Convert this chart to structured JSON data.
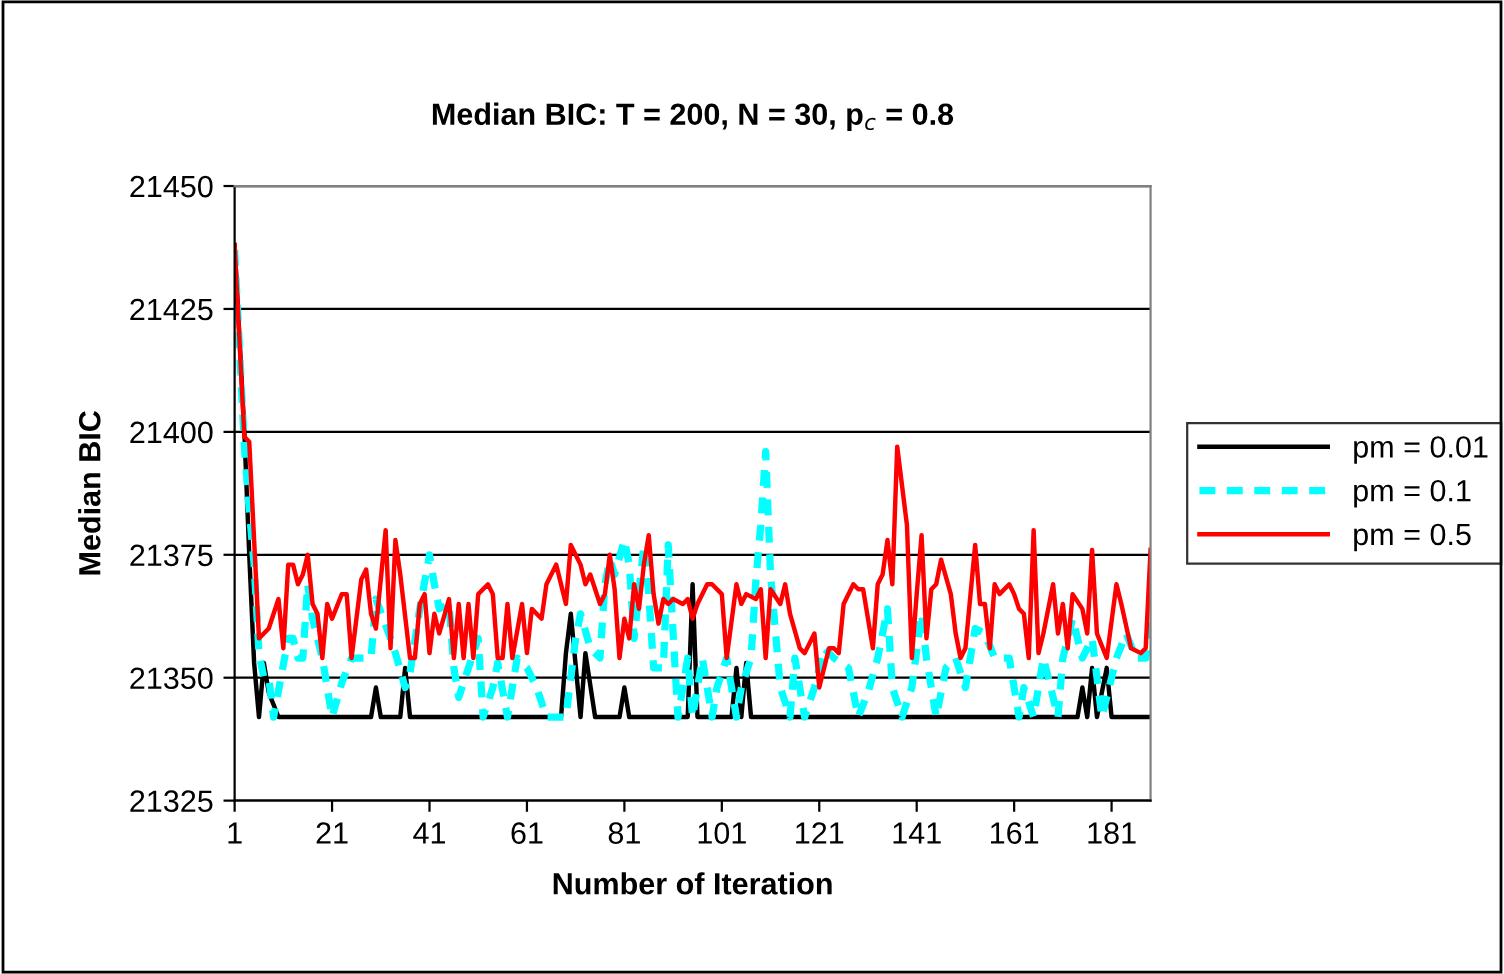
{
  "chart_data": {
    "type": "line",
    "title": "Median BIC: T = 200, N = 30, p$_{c}$ = 0.8",
    "xlabel": "Number of Iteration",
    "ylabel": "Median BIC",
    "xlim": [
      1,
      189
    ],
    "xticks": [
      1,
      21,
      41,
      61,
      81,
      101,
      121,
      141,
      161,
      181
    ],
    "ylim": [
      21325,
      21450
    ],
    "yticks": [
      21325,
      21350,
      21375,
      21400,
      21425,
      21450
    ],
    "grid": "y",
    "legend": "right",
    "marker": "none",
    "series": [
      {
        "name": "pm = 0.01",
        "color": "#000000",
        "line_style": "solid",
        "x": [
          1,
          3,
          4,
          5,
          6,
          7,
          8,
          10,
          29,
          30,
          31,
          35,
          36,
          37,
          68,
          69,
          70,
          72,
          73,
          75,
          80,
          81,
          82,
          94,
          95,
          96,
          103,
          104,
          105,
          106,
          107,
          174,
          175,
          176,
          177,
          178,
          180,
          181,
          189
        ],
        "values": [
          21438,
          21400,
          21375,
          21353,
          21342,
          21353,
          21347,
          21342,
          21342,
          21348,
          21342,
          21342,
          21352,
          21342,
          21342,
          21355,
          21363,
          21342,
          21355,
          21342,
          21342,
          21348,
          21342,
          21342,
          21369,
          21342,
          21342,
          21352,
          21342,
          21353,
          21342,
          21342,
          21348,
          21342,
          21352,
          21342,
          21352,
          21342,
          21342
        ]
      },
      {
        "name": "pm = 0.1",
        "color": "#00ffff",
        "line_style": "dashed",
        "x": [
          1,
          3,
          4,
          5,
          6,
          7,
          8,
          9,
          12,
          13,
          14,
          15,
          16,
          17,
          19,
          20,
          21,
          23,
          25,
          27,
          29,
          30,
          33,
          34,
          36,
          37,
          39,
          41,
          42,
          43,
          45,
          46,
          47,
          49,
          51,
          52,
          54,
          55,
          57,
          59,
          61,
          63,
          65,
          69,
          71,
          72,
          74,
          76,
          77,
          78,
          79,
          81,
          82,
          83,
          85,
          86,
          87,
          89,
          90,
          91,
          92,
          94,
          95,
          97,
          99,
          100,
          102,
          104,
          105,
          107,
          108,
          109,
          110,
          111,
          113,
          115,
          116,
          118,
          120,
          122,
          124,
          127,
          129,
          131,
          133,
          135,
          136,
          138,
          140,
          142,
          143,
          145,
          147,
          149,
          151,
          153,
          155,
          157,
          160,
          162,
          163,
          165,
          167,
          170,
          171,
          173,
          175,
          177,
          179,
          182,
          184,
          186,
          188,
          189
        ],
        "values": [
          21437,
          21397,
          21384,
          21373,
          21355,
          21350,
          21350,
          21342,
          21358,
          21358,
          21354,
          21354,
          21369,
          21362,
          21354,
          21348,
          21342,
          21349,
          21354,
          21354,
          21354,
          21366,
          21358,
          21355,
          21348,
          21351,
          21364,
          21375,
          21369,
          21364,
          21365,
          21352,
          21346,
          21352,
          21358,
          21342,
          21348,
          21353,
          21342,
          21354,
          21352,
          21348,
          21342,
          21342,
          21358,
          21363,
          21356,
          21354,
          21369,
          21374,
          21371,
          21378,
          21373,
          21358,
          21377,
          21367,
          21352,
          21352,
          21377,
          21359,
          21342,
          21354,
          21342,
          21354,
          21342,
          21348,
          21354,
          21342,
          21348,
          21354,
          21370,
          21381,
          21396,
          21371,
          21348,
          21342,
          21354,
          21342,
          21348,
          21356,
          21354,
          21352,
          21342,
          21347,
          21354,
          21364,
          21348,
          21342,
          21348,
          21363,
          21354,
          21342,
          21352,
          21354,
          21348,
          21360,
          21359,
          21354,
          21354,
          21342,
          21348,
          21342,
          21354,
          21342,
          21354,
          21362,
          21354,
          21358,
          21342,
          21354,
          21359,
          21354,
          21354,
          21362
        ]
      },
      {
        "name": "pm = 0.5",
        "color": "#ff0000",
        "line_style": "solid",
        "x": [
          1,
          3,
          4,
          5,
          6,
          8,
          10,
          11,
          12,
          13,
          14,
          15,
          16,
          17,
          18,
          19,
          20,
          21,
          23,
          24,
          25,
          27,
          28,
          29,
          30,
          32,
          33,
          34,
          35,
          37,
          38,
          39,
          40,
          41,
          42,
          43,
          45,
          46,
          47,
          48,
          49,
          50,
          51,
          53,
          54,
          55,
          56,
          57,
          58,
          60,
          61,
          62,
          64,
          65,
          67,
          69,
          70,
          72,
          73,
          74,
          76,
          77,
          78,
          79,
          80,
          81,
          82,
          83,
          84,
          85,
          86,
          87,
          88,
          89,
          90,
          91,
          93,
          94,
          95,
          96,
          98,
          99,
          101,
          102,
          104,
          105,
          106,
          108,
          109,
          110,
          111,
          113,
          114,
          115,
          117,
          118,
          120,
          121,
          123,
          124,
          125,
          126,
          128,
          129,
          130,
          132,
          133,
          134,
          135,
          136,
          137,
          139,
          140,
          141,
          142,
          143,
          144,
          145,
          146,
          148,
          149,
          150,
          151,
          153,
          154,
          155,
          156,
          157,
          158,
          160,
          161,
          162,
          163,
          164,
          165,
          166,
          167,
          169,
          170,
          171,
          172,
          173,
          175,
          176,
          177,
          178,
          180,
          182,
          183,
          185,
          187,
          188,
          189
        ],
        "values": [
          21438,
          21399,
          21398,
          21378,
          21358,
          21360,
          21366,
          21356,
          21373,
          21373,
          21369,
          21371,
          21375,
          21365,
          21363,
          21354,
          21365,
          21362,
          21367,
          21367,
          21354,
          21370,
          21372,
          21363,
          21360,
          21380,
          21356,
          21378,
          21371,
          21354,
          21354,
          21365,
          21367,
          21355,
          21363,
          21359,
          21366,
          21354,
          21365,
          21354,
          21365,
          21354,
          21367,
          21369,
          21367,
          21354,
          21354,
          21365,
          21354,
          21365,
          21355,
          21364,
          21362,
          21369,
          21373,
          21365,
          21377,
          21373,
          21369,
          21371,
          21365,
          21367,
          21375,
          21368,
          21354,
          21362,
          21358,
          21369,
          21364,
          21373,
          21379,
          21367,
          21361,
          21366,
          21365,
          21366,
          21365,
          21366,
          21362,
          21365,
          21369,
          21369,
          21367,
          21354,
          21369,
          21365,
          21367,
          21366,
          21368,
          21354,
          21368,
          21365,
          21369,
          21363,
          21356,
          21355,
          21359,
          21348,
          21356,
          21356,
          21355,
          21365,
          21369,
          21368,
          21368,
          21356,
          21369,
          21371,
          21378,
          21369,
          21397,
          21381,
          21354,
          21367,
          21379,
          21358,
          21368,
          21369,
          21374,
          21367,
          21359,
          21354,
          21356,
          21377,
          21365,
          21365,
          21356,
          21369,
          21367,
          21369,
          21367,
          21364,
          21363,
          21354,
          21380,
          21355,
          21359,
          21369,
          21359,
          21365,
          21356,
          21367,
          21364,
          21359,
          21376,
          21359,
          21354,
          21369,
          21365,
          21356,
          21355,
          21356,
          21376
        ]
      }
    ]
  }
}
